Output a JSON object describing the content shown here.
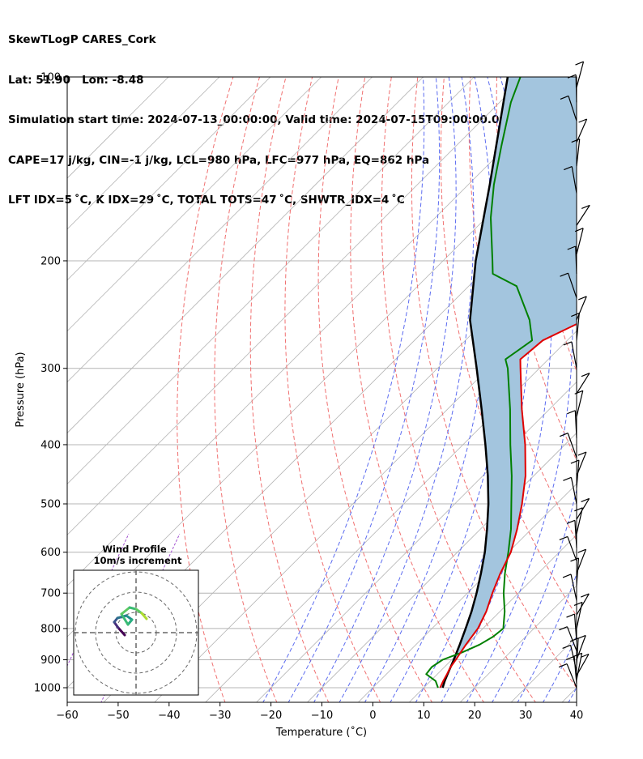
{
  "header": {
    "line1": "SkewTLogP CARES_Cork",
    "line2": "Lat: 51.90   Lon: -8.48",
    "line3": "Simulation start time: 2024-07-13_00:00:00, Valid time: 2024-07-15T09:00:00.00",
    "line4": "CAPE=17 j/kg, CIN=-1 j/kg, LCL=980 hPa, LFC=977 hPa, EQ=862 hPa",
    "line5": "LFT IDX=5 ˚C, K IDX=29 ˚C, TOTAL TOTS=47 ˚C, SHWTR_IDX=4 ˚C"
  },
  "chart_data": {
    "type": "skew-t log-p",
    "xlabel": "Temperature (˚C)",
    "ylabel": "Pressure (hPa)",
    "xlim": [
      -60,
      40
    ],
    "ylim": [
      1050,
      100
    ],
    "x_ticks": [
      -60,
      -50,
      -40,
      -30,
      -20,
      -10,
      0,
      10,
      20,
      30,
      40
    ],
    "x_tick_labels": [
      "−60",
      "−50",
      "−40",
      "−30",
      "−20",
      "−10",
      "0",
      "10",
      "20",
      "30",
      "40"
    ],
    "y_ticks": [
      1000,
      900,
      800,
      700,
      600,
      500,
      400,
      300,
      200,
      100
    ],
    "y_tick_labels": [
      "1000",
      "900",
      "800",
      "700",
      "600",
      "500",
      "400",
      "300",
      "200",
      "100"
    ],
    "colors": {
      "temperature": "#e00000",
      "dewpoint": "#008000",
      "parcel": "#000000",
      "cape_fill": "#a3c5de",
      "dry_adiabat": "#f07070",
      "moist_adiabat": "#5b6bf0",
      "mixing_ratio": "#a14ed0",
      "isotherm": "#b4b4b4",
      "grid": "#b4b4b4"
    },
    "series": [
      {
        "name": "Temperature",
        "pressure": [
          1000,
          975,
          950,
          925,
          900,
          850,
          800,
          750,
          700,
          650,
          600,
          550,
          500,
          450,
          400,
          350,
          300,
          290,
          270,
          250,
          220,
          200,
          185,
          170,
          150,
          130,
          110,
          100
        ],
        "values": [
          13.2,
          12.5,
          11.9,
          11.2,
          10.8,
          9.8,
          9.0,
          7.3,
          4.9,
          2.6,
          0.5,
          -2.8,
          -6.8,
          -11.6,
          -17.8,
          -25.4,
          -33.7,
          -35.5,
          -34.8,
          -30.5,
          -23.2,
          -19.6,
          -21.2,
          -23.7,
          -29.3,
          -33.9,
          -39.2,
          -41.6
        ]
      },
      {
        "name": "Dewpoint",
        "pressure": [
          1000,
          975,
          950,
          925,
          900,
          875,
          850,
          825,
          800,
          750,
          700,
          650,
          600,
          550,
          500,
          450,
          400,
          350,
          300,
          290,
          270,
          250,
          220,
          210,
          200,
          170,
          150,
          130,
          110,
          100
        ],
        "values": [
          12.8,
          11.0,
          7.8,
          7.5,
          8.2,
          10.6,
          12.5,
          13.6,
          14.0,
          10.9,
          7.1,
          3.5,
          0.0,
          -4.0,
          -8.9,
          -14.3,
          -20.7,
          -27.7,
          -36.2,
          -38.4,
          -36.9,
          -41.4,
          -50.6,
          -57.7,
          -60.3,
          -69.1,
          -75.0,
          -81.0,
          -87.8,
          -90.9
        ]
      },
      {
        "name": "Parcel",
        "pressure": [
          1000,
          975,
          950,
          900,
          850,
          800,
          750,
          700,
          650,
          600,
          550,
          500,
          450,
          400,
          350,
          300,
          250,
          200,
          150,
          100
        ],
        "values": [
          13.7,
          12.8,
          12.0,
          10.4,
          8.6,
          6.6,
          4.4,
          1.8,
          -1.2,
          -4.6,
          -8.7,
          -13.4,
          -19.0,
          -25.6,
          -33.3,
          -42.3,
          -53.1,
          -63.6,
          -75.8,
          -93.4
        ]
      }
    ],
    "wind_barbs": {
      "pressure": [
        1000,
        985,
        970,
        955,
        940,
        920,
        900,
        870,
        840,
        800,
        760,
        720,
        680,
        650,
        620,
        590,
        560,
        530,
        500,
        470,
        450,
        420,
        390,
        360,
        330,
        300,
        270,
        250,
        230,
        210,
        195,
        175,
        155,
        140,
        128,
        118,
        110,
        104
      ]
    },
    "inset": {
      "title": "Wind Profile",
      "subtitle": "10m/s increment"
    }
  }
}
